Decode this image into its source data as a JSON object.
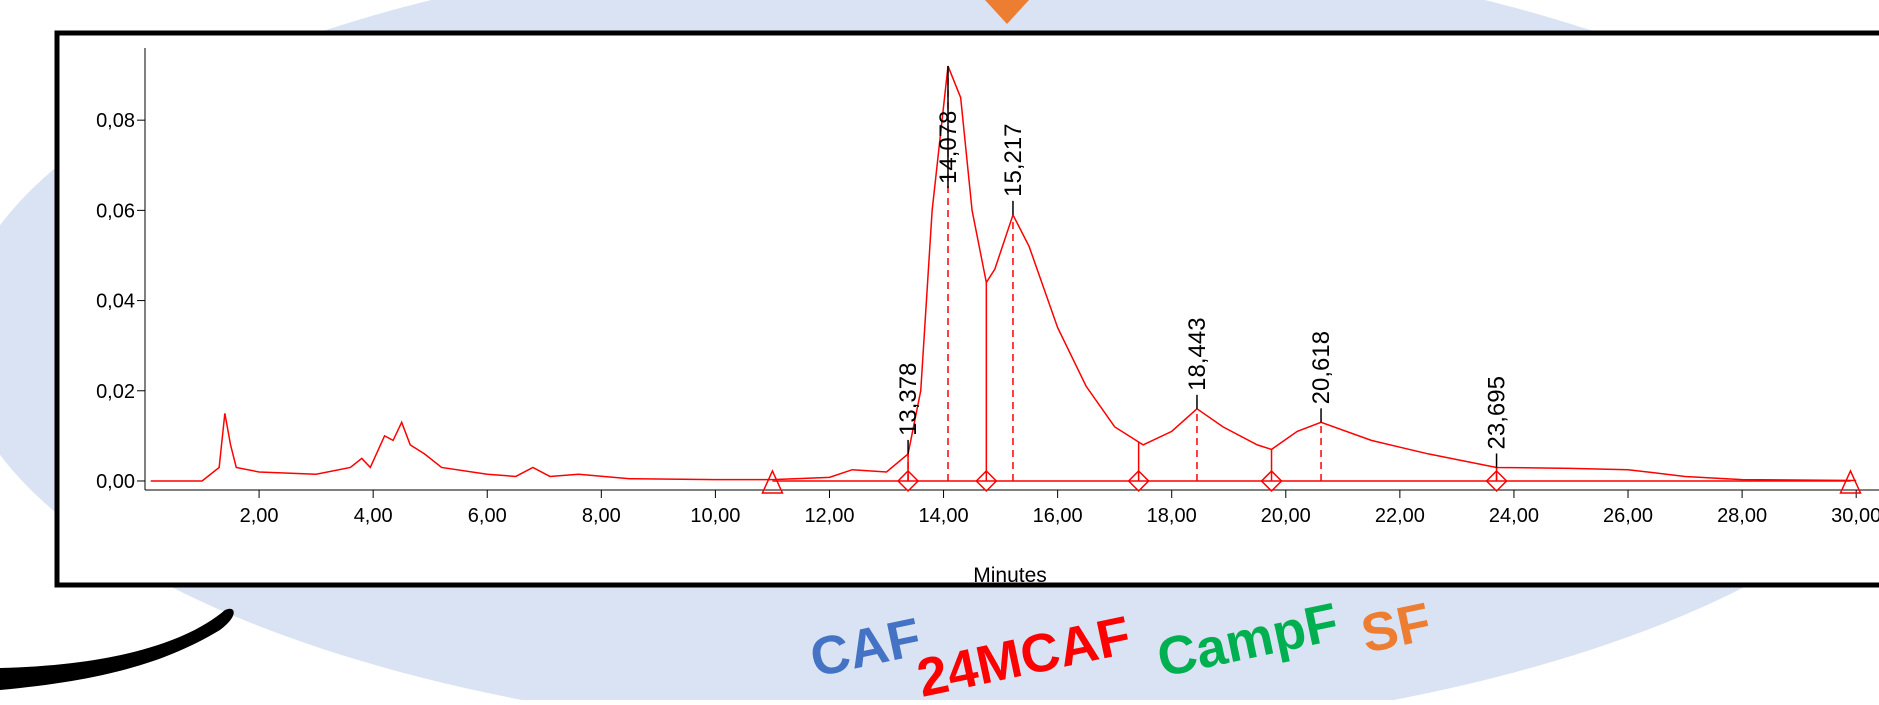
{
  "chart_data": {
    "type": "line",
    "x_label": "Minutes",
    "x": [
      0.1,
      1.0,
      1.3,
      1.4,
      1.5,
      1.6,
      2,
      3,
      3.6,
      3.8,
      3.95,
      4.2,
      4.35,
      4.5,
      4.65,
      4.9,
      5.2,
      6,
      6.5,
      6.8,
      7.1,
      7.6,
      8.5,
      10,
      11,
      12,
      12.4,
      13,
      13.378,
      13.6,
      13.8,
      14.078,
      14.3,
      14.5,
      14.75,
      14.9,
      15.217,
      15.5,
      16,
      16.5,
      17,
      17.5,
      18,
      18.443,
      18.9,
      19.5,
      19.75,
      20.2,
      20.618,
      21.5,
      22.5,
      23.695,
      25,
      26,
      27,
      28,
      30
    ],
    "series": [
      {
        "color": "#ff0000",
        "values": [
          0,
          0,
          0.003,
          0.015,
          0.008,
          0.003,
          0.002,
          0.0015,
          0.003,
          0.005,
          0.003,
          0.01,
          0.009,
          0.013,
          0.008,
          0.006,
          0.003,
          0.0015,
          0.001,
          0.003,
          0.001,
          0.0015,
          0.0005,
          0.0003,
          0.0003,
          0.0008,
          0.0025,
          0.002,
          0.006,
          0.02,
          0.06,
          0.092,
          0.085,
          0.06,
          0.044,
          0.047,
          0.059,
          0.052,
          0.034,
          0.021,
          0.012,
          0.008,
          0.011,
          0.016,
          0.012,
          0.008,
          0.007,
          0.011,
          0.013,
          0.009,
          0.006,
          0.003,
          0.0028,
          0.0025,
          0.001,
          0.0003,
          0.0001
        ]
      }
    ],
    "peaks": [
      {
        "value": 13.378,
        "label": "13,378"
      },
      {
        "value": 14.078,
        "label": "14,078"
      },
      {
        "value": 15.217,
        "label": "15,217"
      },
      {
        "value": 18.443,
        "label": "18,443"
      },
      {
        "value": 20.618,
        "label": "20,618"
      },
      {
        "value": 23.695,
        "label": "23,695"
      }
    ],
    "peak_boundaries": [
      13.378,
      14.75,
      17.42,
      19.75,
      23.695
    ],
    "baseline_ends": [
      11.0,
      29.9
    ],
    "xlim": [
      0,
      30.4
    ],
    "ylim": [
      -0.002,
      0.096
    ],
    "xticks": [
      {
        "value": 2,
        "label": "2,00"
      },
      {
        "value": 4,
        "label": "4,00"
      },
      {
        "value": 6,
        "label": "6,00"
      },
      {
        "value": 8,
        "label": "8,00"
      },
      {
        "value": 10,
        "label": "10,00"
      },
      {
        "value": 12,
        "label": "12,00"
      },
      {
        "value": 14,
        "label": "14,00"
      },
      {
        "value": 16,
        "label": "16,00"
      },
      {
        "value": 18,
        "label": "18,00"
      },
      {
        "value": 20,
        "label": "20,00"
      },
      {
        "value": 22,
        "label": "22,00"
      },
      {
        "value": 24,
        "label": "24,00"
      },
      {
        "value": 26,
        "label": "26,00"
      },
      {
        "value": 28,
        "label": "28,00"
      },
      {
        "value": 30,
        "label": "30,00"
      }
    ],
    "yticks": [
      {
        "value": 0,
        "label": "0,00"
      },
      {
        "value": 0.02,
        "label": "0,02"
      },
      {
        "value": 0.04,
        "label": "0,04"
      },
      {
        "value": 0.06,
        "label": "0,06"
      },
      {
        "value": 0.08,
        "label": "0,08"
      }
    ],
    "annotations": [
      {
        "text": "CAF",
        "color": "#4472c4"
      },
      {
        "text": "24MCAF",
        "color": "#ff0000"
      },
      {
        "text": "CampF",
        "color": "#00b050"
      },
      {
        "text": "SF",
        "color": "#ed7d31"
      }
    ]
  }
}
